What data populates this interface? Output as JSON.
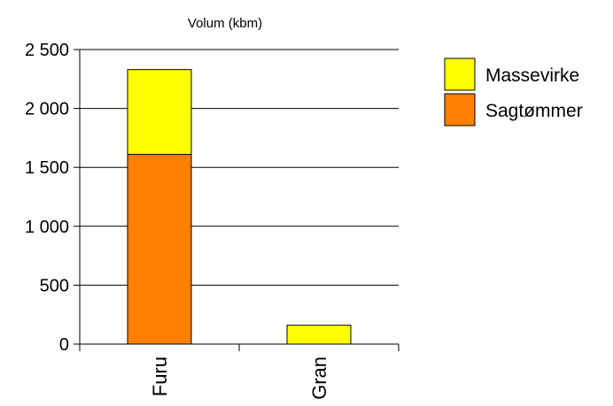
{
  "chart_data": {
    "type": "bar",
    "stacked": true,
    "title": "",
    "ylabel": "Volum (kbm)",
    "xlabel": "",
    "categories": [
      "Furu",
      "Gran"
    ],
    "series": [
      {
        "name": "Sagtømmer",
        "color": "#ff7f00",
        "values": [
          1610,
          0
        ]
      },
      {
        "name": "Massevirke",
        "color": "#ffff00",
        "values": [
          720,
          160
        ]
      }
    ],
    "ylim": [
      0,
      2500
    ],
    "yticks": [
      0,
      500,
      1000,
      1500,
      2000,
      2500
    ],
    "ytick_labels": [
      "0",
      "500",
      "1 000",
      "1 500",
      "2 000",
      "2 500"
    ],
    "grid": true,
    "legend": {
      "placement": "right",
      "entries": [
        "Massevirke",
        "Sagtømmer"
      ]
    }
  }
}
